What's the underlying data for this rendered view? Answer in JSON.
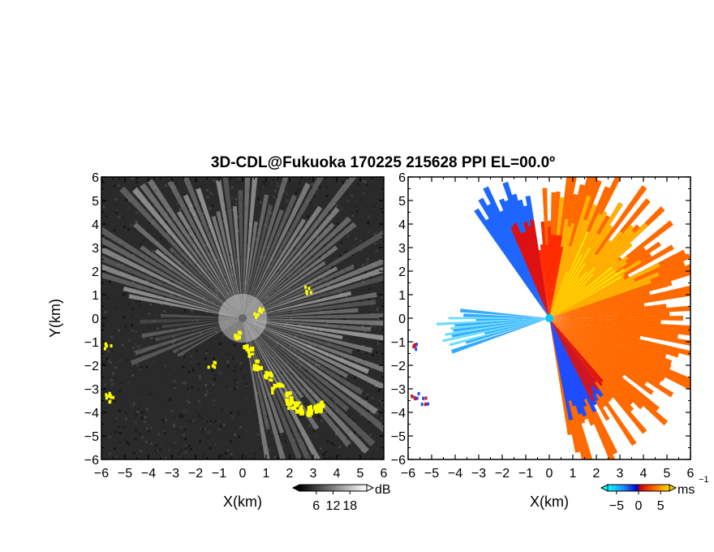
{
  "title": "3D-CDL@Fukuoka 170225 215628 PPI EL=00.0º",
  "chart_data": [
    {
      "type": "heatmap",
      "panel": "left",
      "xlabel": "X(km)",
      "ylabel": "Y(km)",
      "xlim": [
        -6,
        6
      ],
      "ylim": [
        -6,
        6
      ],
      "xticks": [
        "-6",
        "-5",
        "-4",
        "-3",
        "-2",
        "-1",
        "0",
        "1",
        "2",
        "3",
        "4",
        "5",
        "6"
      ],
      "yticks": [
        "6",
        "5",
        "4",
        "3",
        "2",
        "1",
        "0",
        "-1",
        "-2",
        "-3",
        "-4",
        "-5",
        "-6"
      ],
      "colorbar": {
        "ticks": [
          "6",
          "12",
          "18"
        ],
        "tick_values": [
          6,
          12,
          18
        ],
        "range": [
          0,
          24
        ],
        "unit": "dB",
        "colors": [
          "#000000",
          "#ffffff"
        ]
      },
      "flag_color": "#ffff00",
      "background_color": "#2a2a2a"
    },
    {
      "type": "heatmap",
      "panel": "right",
      "xlabel": "X(km)",
      "ylabel": "",
      "xlim": [
        -6,
        6
      ],
      "ylim": [
        -6,
        6
      ],
      "xticks": [
        "-6",
        "-5",
        "-4",
        "-3",
        "-2",
        "-1",
        "0",
        "1",
        "2",
        "3",
        "4",
        "5",
        "6"
      ],
      "yticks": [
        "6",
        "5",
        "4",
        "3",
        "2",
        "1",
        "0",
        "-1",
        "-2",
        "-3",
        "-4",
        "-5",
        "-6"
      ],
      "colorbar": {
        "ticks": [
          "-5",
          "0",
          "5"
        ],
        "tick_values": [
          -5,
          0,
          5
        ],
        "range": [
          -7,
          7
        ],
        "unit": "ms",
        "unit_exp": "-1",
        "colors": [
          "#00ffff",
          "#0066ff",
          "#cc0000",
          "#ff6600",
          "#ffcc00"
        ]
      },
      "background_color": "#ffffff"
    }
  ]
}
